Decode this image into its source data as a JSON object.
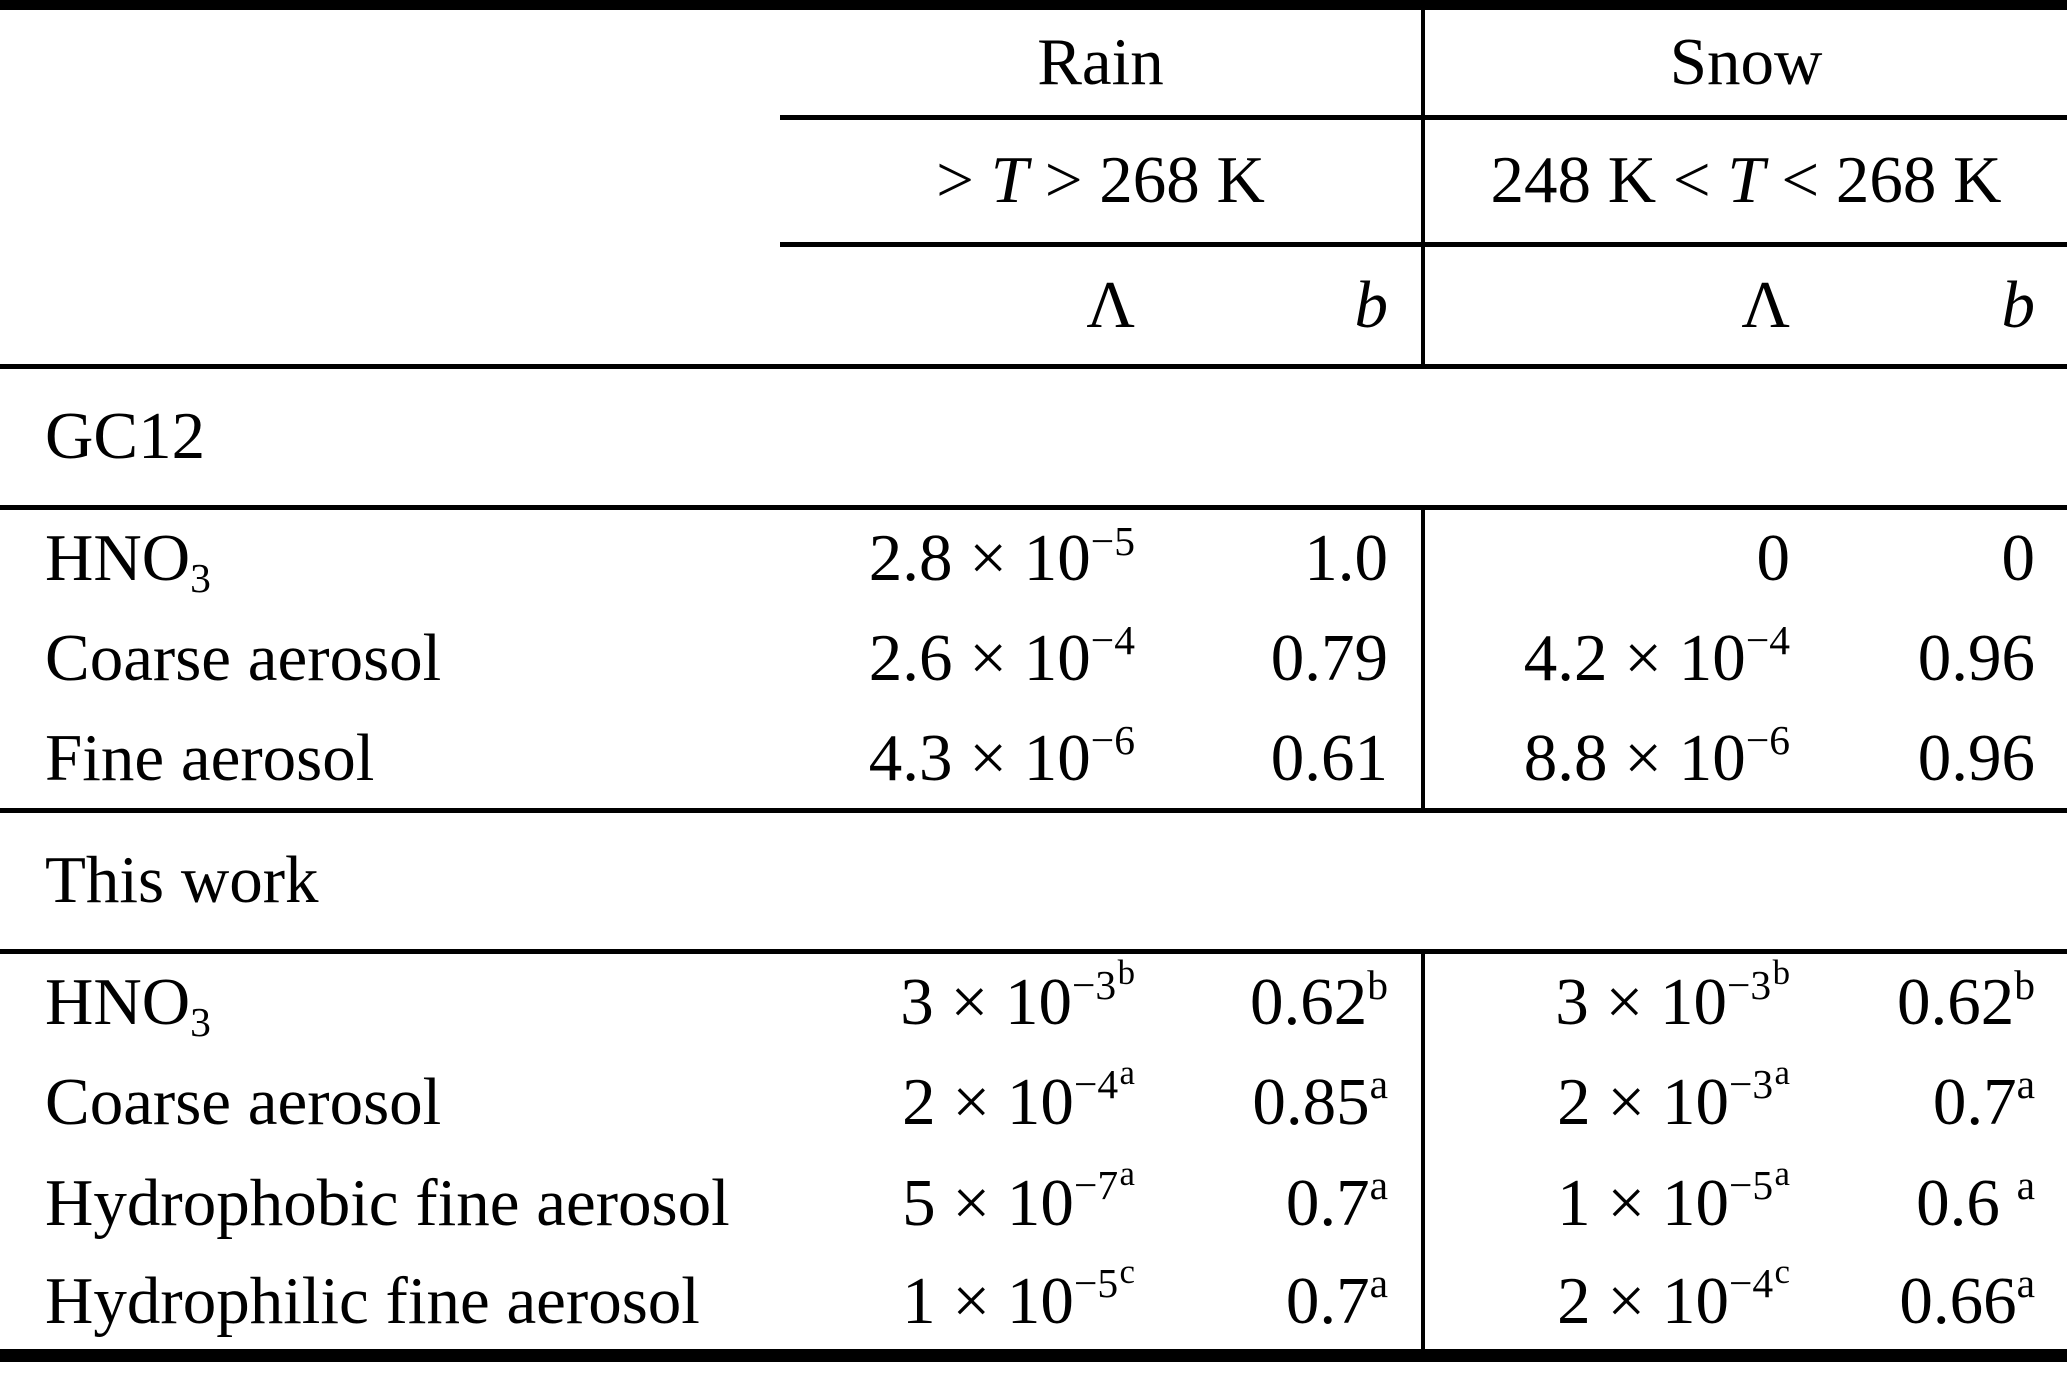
{
  "colors": {
    "text": "#000000",
    "background": "#ffffff",
    "rule": "#000000"
  },
  "header": {
    "rain_label": [
      {
        "t": "Rain"
      }
    ],
    "snow_label": [
      {
        "t": "Snow"
      }
    ],
    "rain_temp": [
      {
        "t": "> "
      },
      {
        "t": "T",
        "style": "i"
      },
      {
        "t": " > 268 K"
      }
    ],
    "snow_temp": [
      {
        "t": "248 K < "
      },
      {
        "t": "T",
        "style": "i"
      },
      {
        "t": " < 268 K"
      }
    ],
    "lambda": [
      {
        "t": "Λ"
      }
    ],
    "b": [
      {
        "t": "b",
        "style": "i"
      }
    ]
  },
  "sections": [
    {
      "title": [
        {
          "t": "GC12"
        }
      ],
      "rows": [
        {
          "label": [
            {
              "t": "HNO"
            },
            {
              "t": "3",
              "style": "sub"
            }
          ],
          "rain_lambda": [
            {
              "t": "2.8 × 10"
            },
            {
              "t": "−5",
              "style": "sup"
            }
          ],
          "rain_b": [
            {
              "t": "1.0"
            }
          ],
          "snow_lambda": [
            {
              "t": "0"
            }
          ],
          "snow_b": [
            {
              "t": "0"
            }
          ]
        },
        {
          "label": [
            {
              "t": "Coarse aerosol"
            }
          ],
          "rain_lambda": [
            {
              "t": "2.6 × 10"
            },
            {
              "t": "−4",
              "style": "sup"
            }
          ],
          "rain_b": [
            {
              "t": "0.79"
            }
          ],
          "snow_lambda": [
            {
              "t": "4.2 × 10"
            },
            {
              "t": "−4",
              "style": "sup"
            }
          ],
          "snow_b": [
            {
              "t": "0.96"
            }
          ]
        },
        {
          "label": [
            {
              "t": "Fine aerosol"
            }
          ],
          "rain_lambda": [
            {
              "t": "4.3 × 10"
            },
            {
              "t": "−6",
              "style": "sup"
            }
          ],
          "rain_b": [
            {
              "t": "0.61"
            }
          ],
          "snow_lambda": [
            {
              "t": "8.8 × 10"
            },
            {
              "t": "−6",
              "style": "sup"
            }
          ],
          "snow_b": [
            {
              "t": "0.96"
            }
          ]
        }
      ]
    },
    {
      "title": [
        {
          "t": "This work"
        }
      ],
      "rows": [
        {
          "label": [
            {
              "t": "HNO"
            },
            {
              "t": "3",
              "style": "sub"
            }
          ],
          "rain_lambda": [
            {
              "t": "3 × 10"
            },
            {
              "t": "−3",
              "style": "sup"
            },
            {
              "t": "b",
              "style": "sup2"
            }
          ],
          "rain_b": [
            {
              "t": "0.62"
            },
            {
              "t": "b",
              "style": "sup"
            }
          ],
          "snow_lambda": [
            {
              "t": "3 × 10"
            },
            {
              "t": "−3",
              "style": "sup"
            },
            {
              "t": "b",
              "style": "sup2"
            }
          ],
          "snow_b": [
            {
              "t": "0.62"
            },
            {
              "t": "b",
              "style": "sup"
            }
          ]
        },
        {
          "label": [
            {
              "t": "Coarse aerosol"
            }
          ],
          "rain_lambda": [
            {
              "t": "2 × 10"
            },
            {
              "t": "−4",
              "style": "sup"
            },
            {
              "t": "a",
              "style": "sup2"
            }
          ],
          "rain_b": [
            {
              "t": "0.85"
            },
            {
              "t": "a",
              "style": "sup"
            }
          ],
          "snow_lambda": [
            {
              "t": "2 × 10"
            },
            {
              "t": "−3",
              "style": "sup"
            },
            {
              "t": "a",
              "style": "sup2"
            }
          ],
          "snow_b": [
            {
              "t": "0.7"
            },
            {
              "t": "a",
              "style": "sup"
            }
          ]
        },
        {
          "label": [
            {
              "t": "Hydrophobic fine aerosol"
            }
          ],
          "rain_lambda": [
            {
              "t": "5 × 10"
            },
            {
              "t": "−7",
              "style": "sup"
            },
            {
              "t": "a",
              "style": "sup2"
            }
          ],
          "rain_b": [
            {
              "t": "0.7"
            },
            {
              "t": "a",
              "style": "sup"
            }
          ],
          "snow_lambda": [
            {
              "t": "1 × 10"
            },
            {
              "t": "−5",
              "style": "sup"
            },
            {
              "t": "a",
              "style": "sup2"
            }
          ],
          "snow_b": [
            {
              "t": "0.6 "
            },
            {
              "t": "a",
              "style": "sup"
            }
          ]
        },
        {
          "label": [
            {
              "t": "Hydrophilic fine aerosol"
            }
          ],
          "rain_lambda": [
            {
              "t": "1 × 10"
            },
            {
              "t": "−5",
              "style": "sup"
            },
            {
              "t": "c",
              "style": "sup2"
            }
          ],
          "rain_b": [
            {
              "t": "0.7"
            },
            {
              "t": "a",
              "style": "sup"
            }
          ],
          "snow_lambda": [
            {
              "t": "2 × 10"
            },
            {
              "t": "−4",
              "style": "sup"
            },
            {
              "t": "c",
              "style": "sup2"
            }
          ],
          "snow_b": [
            {
              "t": "0.66"
            },
            {
              "t": "a",
              "style": "sup"
            }
          ]
        }
      ]
    }
  ]
}
